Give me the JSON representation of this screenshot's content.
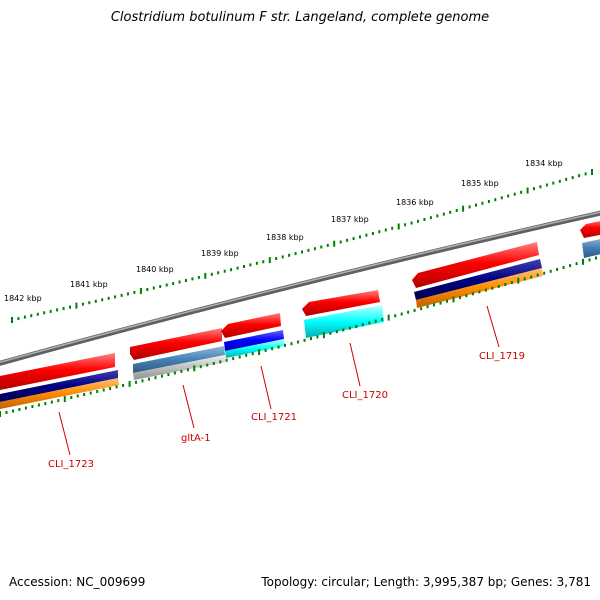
{
  "title": "Clostridium botulinum F str. Langeland, complete genome",
  "footer": {
    "accession": "Accession: NC_009699",
    "summary": "Topology: circular; Length: 3,995,387 bp; Genes: 3,781"
  },
  "scale_labels": [
    "1842 kbp",
    "1841 kbp",
    "1840 kbp",
    "1839 kbp",
    "1838 kbp",
    "1837 kbp",
    "1836 kbp",
    "1835 kbp",
    "1834 kbp"
  ],
  "gene_labels": [
    "CLI_1723",
    "gltA-1",
    "CLI_1721",
    "CLI_1720",
    "CLI_1719"
  ],
  "colors": {
    "backbone": "#808080",
    "forward_gene": "#ff0000",
    "cds_navy": "#000080",
    "cds_orange": "#ff8c00",
    "cds_blue": "#0000ff",
    "cds_cyan": "#00ffff",
    "cds_steelblue": "#4682b4",
    "cds_gray": "#c0c0c0",
    "ticks": "#008000",
    "label": "#cc0000"
  }
}
